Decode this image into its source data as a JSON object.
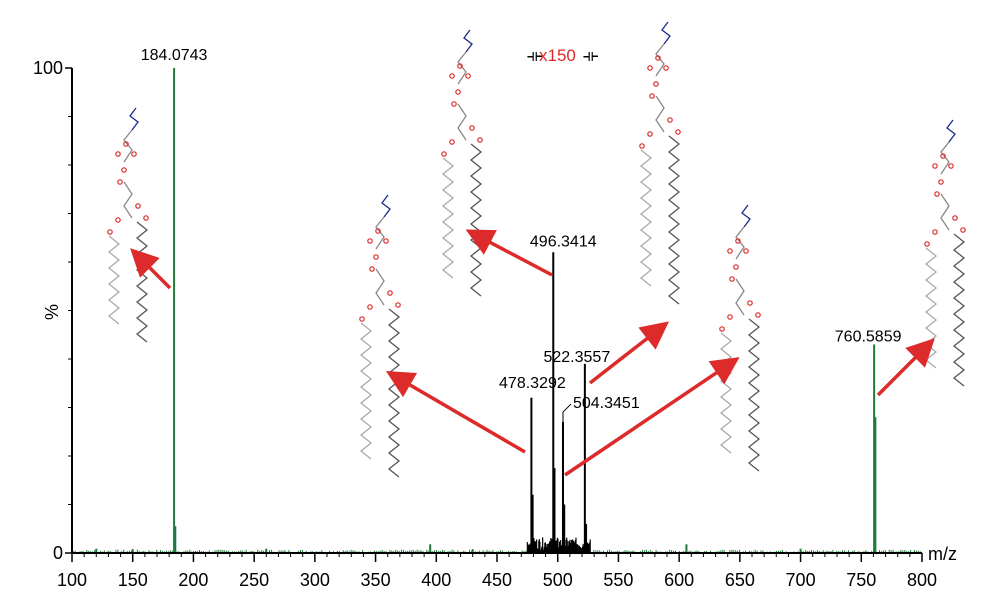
{
  "chart_data": {
    "type": "bar",
    "xlabel": "m/z",
    "ylabel": "%",
    "xlim": [
      100,
      800
    ],
    "ylim": [
      0,
      100
    ],
    "x_ticks": [
      "100",
      "150",
      "200",
      "250",
      "300",
      "350",
      "400",
      "450",
      "500",
      "550",
      "600",
      "650",
      "700",
      "750",
      "800"
    ],
    "y_ticks": [
      "0",
      "100"
    ],
    "magnification": {
      "label": "x150",
      "range": [
        475,
        527
      ]
    },
    "colors": {
      "series": "#1f7a3a",
      "magnified": "#000000",
      "arrow": "#dd2a2a",
      "mag_text": "#dd2a2a"
    },
    "peaks": [
      {
        "mz": 184.0743,
        "intensity": 100,
        "label": "184.0743"
      },
      {
        "mz": 185.07,
        "intensity": 5.5
      },
      {
        "mz": 760.5859,
        "intensity": 43,
        "label": "760.5859"
      },
      {
        "mz": 761.59,
        "intensity": 28
      },
      {
        "mz": 478.3292,
        "intensity": 32,
        "label": "478.3292"
      },
      {
        "mz": 479.33,
        "intensity": 12
      },
      {
        "mz": 496.3414,
        "intensity": 62,
        "label": "496.3414"
      },
      {
        "mz": 497.34,
        "intensity": 17.5
      },
      {
        "mz": 504.3451,
        "intensity": 27,
        "label": "504.3451"
      },
      {
        "mz": 505.35,
        "intensity": 10
      },
      {
        "mz": 522.3557,
        "intensity": 39,
        "label": "522.3557"
      },
      {
        "mz": 523.36,
        "intensity": 6
      },
      {
        "mz": 395,
        "intensity": 1.8
      },
      {
        "mz": 606,
        "intensity": 1.8
      },
      {
        "mz": 120,
        "intensity": 0.9
      },
      {
        "mz": 150,
        "intensity": 0.8
      },
      {
        "mz": 260,
        "intensity": 0.9
      },
      {
        "mz": 430,
        "intensity": 0.8
      },
      {
        "mz": 700,
        "intensity": 0.9
      }
    ]
  }
}
